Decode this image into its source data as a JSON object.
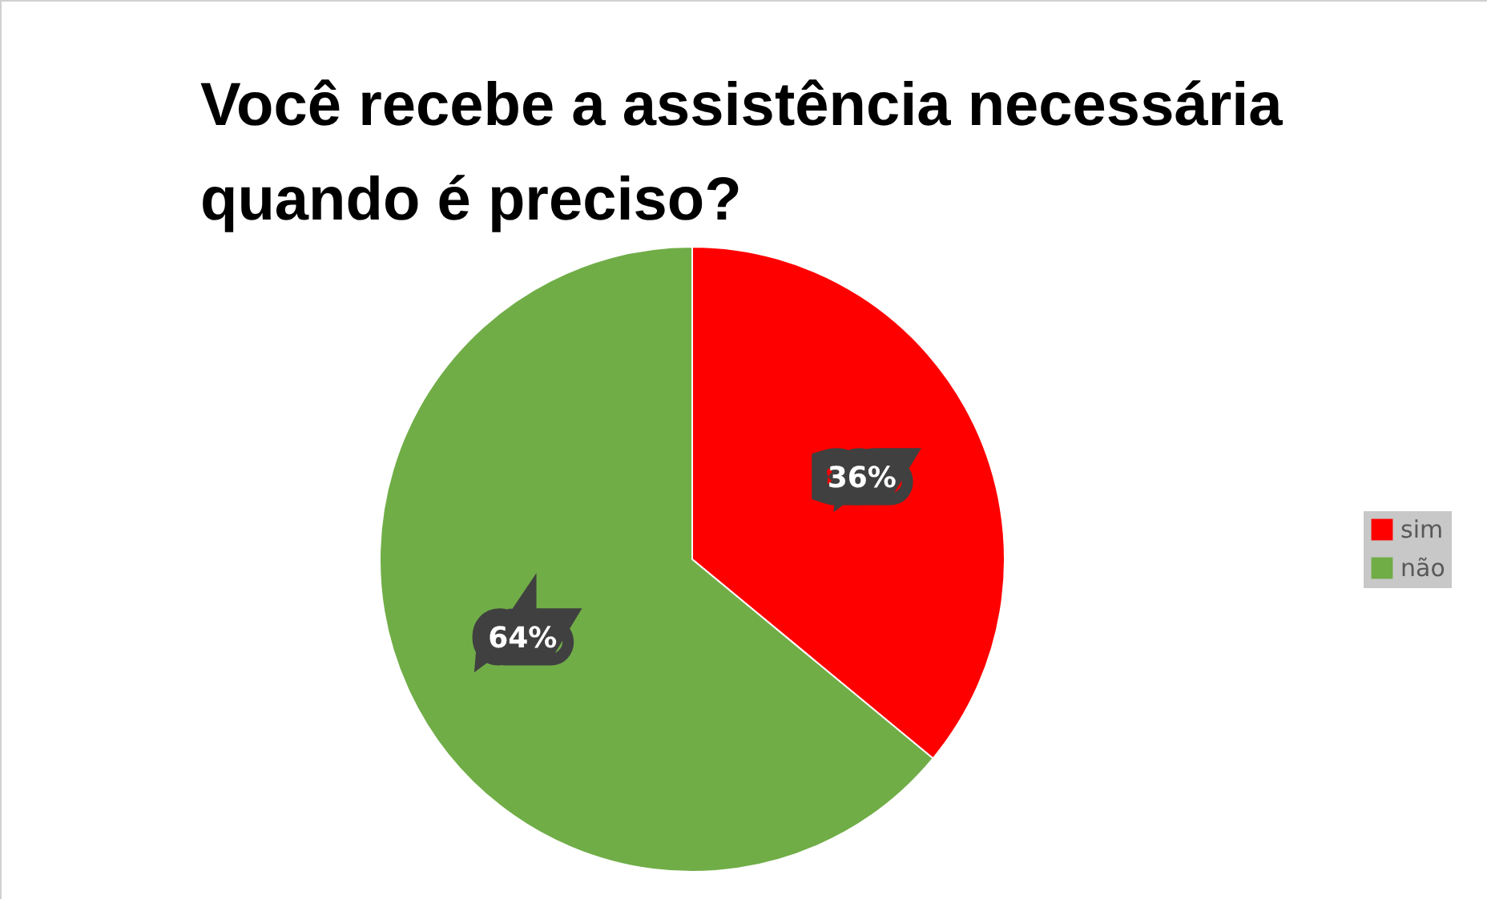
{
  "chart_data": {
    "type": "pie",
    "title": "Você recebe a assistência necessária quando é preciso?",
    "categories": [
      "sim",
      "não"
    ],
    "values": [
      36,
      64
    ],
    "colors": [
      "#ff0000",
      "#70ad47"
    ],
    "value_labels": [
      "36%",
      "64%"
    ],
    "legend": "right"
  }
}
